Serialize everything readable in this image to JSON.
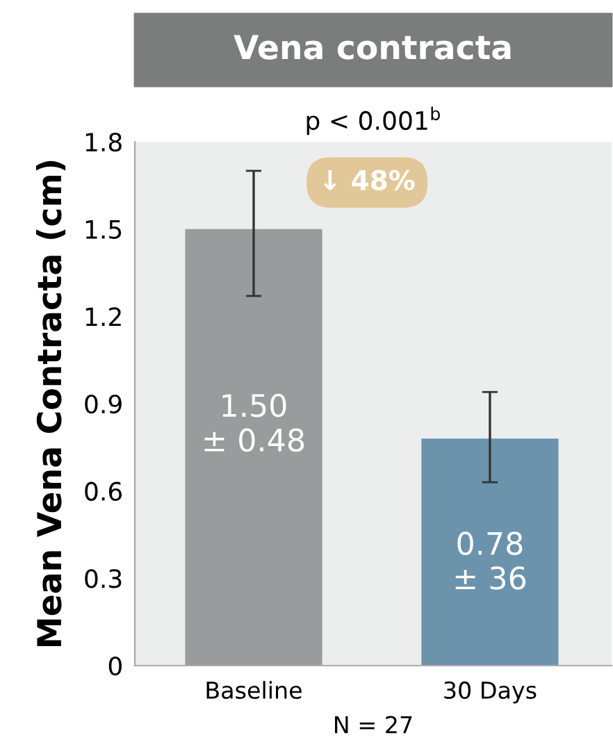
{
  "chart_data": {
    "type": "bar",
    "title": "Vena contracta",
    "ylabel": "Mean Vena Contracta (cm)",
    "categories": [
      "Baseline",
      "30 Days"
    ],
    "values": [
      1.5,
      0.78
    ],
    "colors": [
      "#999b9c",
      "#6b93ab"
    ],
    "errors": [
      [
        1.27,
        1.7
      ],
      [
        0.63,
        0.94
      ]
    ],
    "value_labels": [
      "1.50\n± 0.48",
      "0.78\n± 36"
    ],
    "ylim": [
      0,
      1.8
    ],
    "yticks": [
      0,
      0.3,
      0.6,
      0.9,
      1.2,
      1.5,
      1.8
    ],
    "grid": false,
    "legend": false,
    "annotations": [
      "p < 0.001$^{b}$",
      "↓ 48%",
      "N = 27"
    ]
  }
}
